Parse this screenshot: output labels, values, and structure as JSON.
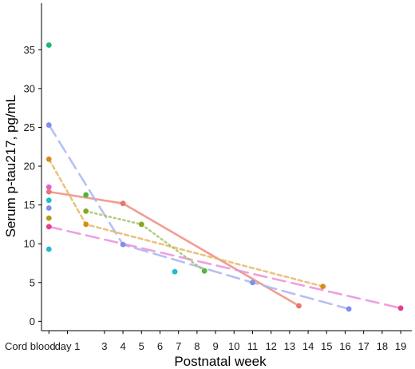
{
  "chart_data": {
    "type": "scatter",
    "title": "",
    "xlabel": "Postnatal week",
    "ylabel": "Serum p-tau217, pg/mL",
    "x_categories": [
      "Cord blood",
      "day 1",
      "3",
      "4",
      "5",
      "6",
      "7",
      "8",
      "9",
      "10",
      "11",
      "12",
      "13",
      "14",
      "15",
      "16",
      "17",
      "18",
      "19"
    ],
    "x_category_positions": [
      0,
      1,
      3,
      4,
      5,
      6,
      7,
      8,
      9,
      10,
      11,
      12,
      13,
      14,
      15,
      16,
      17,
      18,
      19
    ],
    "xlim": [
      -0.4,
      19.6
    ],
    "ylim": [
      -1.2,
      41
    ],
    "yticks": [
      0,
      5,
      10,
      15,
      20,
      25,
      30,
      35
    ],
    "grid": false,
    "legend": "none",
    "series": [
      {
        "color": "#f08c7f",
        "dash": "solid",
        "points": [
          [
            0,
            16.7
          ],
          [
            4,
            15.2
          ],
          [
            13.5,
            2.0
          ]
        ]
      },
      {
        "color": "#aab4f2",
        "dash": "long",
        "points": [
          [
            0,
            25.3
          ],
          [
            4,
            9.9
          ],
          [
            11,
            5.0
          ],
          [
            16.2,
            1.6
          ]
        ]
      },
      {
        "color": "#ec8fd9",
        "dash": "long",
        "points": [
          [
            0,
            12.2
          ],
          [
            19,
            1.7
          ]
        ]
      },
      {
        "color": "#e8b96a",
        "dash": "short",
        "points": [
          [
            0,
            20.9
          ],
          [
            2,
            12.5
          ],
          [
            14.8,
            4.5
          ]
        ]
      },
      {
        "color": "#a6c46a",
        "dash": "dotted",
        "points": [
          [
            2,
            14.2
          ],
          [
            5,
            12.5
          ],
          [
            8.4,
            6.5
          ]
        ]
      }
    ],
    "points": [
      {
        "x": 0,
        "y": 35.6,
        "color": "#22b573"
      },
      {
        "x": 0,
        "y": 25.3,
        "color": "#7e8ef0"
      },
      {
        "x": 0,
        "y": 20.9,
        "color": "#d98b1a"
      },
      {
        "x": 0,
        "y": 17.3,
        "color": "#e75adb"
      },
      {
        "x": 0,
        "y": 16.7,
        "color": "#e8766f"
      },
      {
        "x": 0,
        "y": 15.6,
        "color": "#1fbcd2"
      },
      {
        "x": 0,
        "y": 14.6,
        "color": "#7e8ef0"
      },
      {
        "x": 0,
        "y": 13.3,
        "color": "#b79a15"
      },
      {
        "x": 0,
        "y": 12.2,
        "color": "#e63e8f"
      },
      {
        "x": 0,
        "y": 9.3,
        "color": "#1fbcd2"
      },
      {
        "x": 2,
        "y": 16.3,
        "color": "#4cb833"
      },
      {
        "x": 2,
        "y": 14.2,
        "color": "#8aa619"
      },
      {
        "x": 2,
        "y": 12.5,
        "color": "#d98b1a"
      },
      {
        "x": 4,
        "y": 15.2,
        "color": "#e8766f"
      },
      {
        "x": 4,
        "y": 9.9,
        "color": "#7e8ef0"
      },
      {
        "x": 5,
        "y": 12.5,
        "color": "#8aa619"
      },
      {
        "x": 6.8,
        "y": 6.4,
        "color": "#1fbcd2"
      },
      {
        "x": 8.4,
        "y": 6.5,
        "color": "#4cb833"
      },
      {
        "x": 11,
        "y": 5.0,
        "color": "#7e8ef0"
      },
      {
        "x": 13.5,
        "y": 2.0,
        "color": "#e8766f"
      },
      {
        "x": 14.8,
        "y": 4.5,
        "color": "#d98b1a"
      },
      {
        "x": 16.2,
        "y": 1.6,
        "color": "#7e8ef0"
      },
      {
        "x": 19,
        "y": 1.7,
        "color": "#e63e8f"
      }
    ]
  }
}
